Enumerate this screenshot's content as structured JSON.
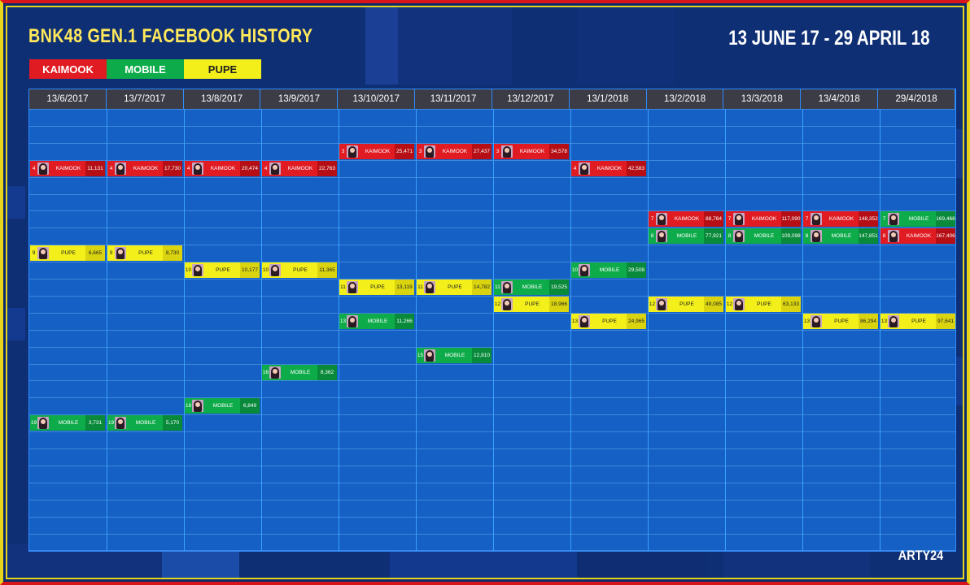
{
  "title": "BNK48 GEN.1 FACEBOOK HISTORY",
  "date_range": "13 JUNE 17 - 29 APRIL 18",
  "credit": "ARTY24",
  "colors": {
    "KAIMOOK": "#e01b22",
    "MOBILE": "#0eab4a",
    "PUPE": "#f2ef1a",
    "KAIMOOK_dark": "#b50f15",
    "MOBILE_dark": "#088a3a",
    "PUPE_dark": "#d9d40f",
    "background": "#1560c4",
    "header": "#3c3c46"
  },
  "legend": [
    {
      "name": "KAIMOOK"
    },
    {
      "name": "MOBILE"
    },
    {
      "name": "PUPE"
    }
  ],
  "chart_data": {
    "type": "table",
    "dates": [
      "13/6/2017",
      "13/7/2017",
      "13/8/2017",
      "13/9/2017",
      "13/10/2017",
      "13/11/2017",
      "13/12/2017",
      "13/1/2018",
      "13/2/2018",
      "13/3/2018",
      "13/4/2018",
      "29/4/2018"
    ],
    "series": [
      {
        "name": "KAIMOOK",
        "ranks": [
          4,
          4,
          4,
          4,
          3,
          3,
          3,
          4,
          7,
          7,
          7,
          8
        ],
        "values": [
          "11,131",
          "17,730",
          "20,474",
          "22,763",
          "25,471",
          "27,437",
          "34,578",
          "42,583",
          "88,784",
          "117,090",
          "148,352",
          "167,406"
        ]
      },
      {
        "name": "MOBILE",
        "ranks": [
          19,
          19,
          18,
          16,
          13,
          15,
          11,
          10,
          8,
          8,
          8,
          7
        ],
        "values": [
          "3,731",
          "5,170",
          "6,849",
          "8,362",
          "11,266",
          "12,810",
          "19,525",
          "29,508",
          "77,921",
          "109,098",
          "147,851",
          "169,468"
        ]
      },
      {
        "name": "PUPE",
        "ranks": [
          9,
          9,
          10,
          10,
          11,
          11,
          12,
          13,
          12,
          12,
          13,
          13
        ],
        "values": [
          "6,665",
          "8,730",
          "10,177",
          "11,365",
          "13,119",
          "14,782",
          "18,966",
          "24,965",
          "49,085",
          "63,133",
          "86,294",
          "97,641"
        ]
      }
    ]
  }
}
